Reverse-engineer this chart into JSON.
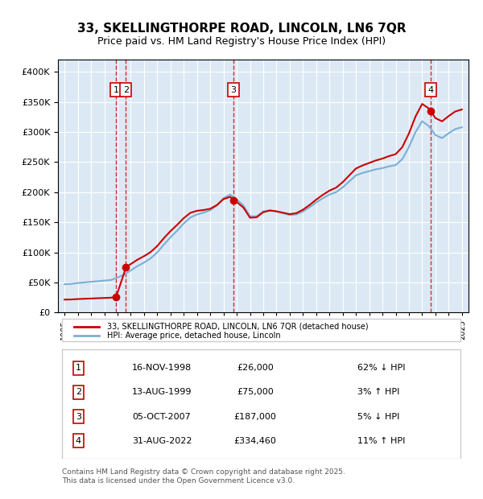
{
  "title": "33, SKELLINGTHORPE ROAD, LINCOLN, LN6 7QR",
  "subtitle": "Price paid vs. HM Land Registry's House Price Index (HPI)",
  "bg_color": "#dce9f5",
  "plot_bg_color": "#dce9f5",
  "hpi_years": [
    1995,
    1995.5,
    1996,
    1996.5,
    1997,
    1997.5,
    1998,
    1998.5,
    1999,
    1999.5,
    2000,
    2000.5,
    2001,
    2001.5,
    2002,
    2002.5,
    2003,
    2003.5,
    2004,
    2004.5,
    2005,
    2005.5,
    2006,
    2006.5,
    2007,
    2007.5,
    2008,
    2008.5,
    2009,
    2009.5,
    2010,
    2010.5,
    2011,
    2011.5,
    2012,
    2012.5,
    2013,
    2013.5,
    2014,
    2014.5,
    2015,
    2015.5,
    2016,
    2016.5,
    2017,
    2017.5,
    2018,
    2018.5,
    2019,
    2019.5,
    2020,
    2020.5,
    2021,
    2021.5,
    2022,
    2022.5,
    2023,
    2023.5,
    2024,
    2024.5,
    2025
  ],
  "hpi_values": [
    47000,
    47500,
    49000,
    50000,
    51000,
    52000,
    53000,
    54000,
    58000,
    63000,
    70000,
    77000,
    83000,
    90000,
    100000,
    113000,
    125000,
    136000,
    148000,
    158000,
    163000,
    166000,
    170000,
    178000,
    190000,
    196000,
    188000,
    178000,
    160000,
    160000,
    168000,
    170000,
    168000,
    165000,
    162000,
    163000,
    168000,
    175000,
    183000,
    190000,
    196000,
    200000,
    208000,
    218000,
    228000,
    232000,
    235000,
    238000,
    240000,
    243000,
    245000,
    255000,
    275000,
    300000,
    318000,
    310000,
    295000,
    290000,
    298000,
    305000,
    308000
  ],
  "sale_years": [
    1998.88,
    1999.62,
    2007.76,
    2022.66
  ],
  "sale_prices": [
    26000,
    75000,
    187000,
    334460
  ],
  "sale_color": "#cc0000",
  "hpi_color": "#7ab0d4",
  "hpi_line_color": "#5590b8",
  "annotations": [
    {
      "num": 1,
      "x": 1998.88,
      "label": "16-NOV-1998",
      "price": "£26,000",
      "pct": "62% ↓ HPI"
    },
    {
      "num": 2,
      "x": 1999.62,
      "label": "13-AUG-1999",
      "price": "£75,000",
      "pct": "3% ↑ HPI"
    },
    {
      "num": 3,
      "x": 2007.76,
      "label": "05-OCT-2007",
      "price": "£187,000",
      "pct": "5% ↓ HPI"
    },
    {
      "num": 4,
      "x": 2022.66,
      "label": "31-AUG-2022",
      "price": "£334,460",
      "pct": "11% ↑ HPI"
    }
  ],
  "ylim": [
    0,
    420000
  ],
  "xlim": [
    1994.5,
    2025.5
  ],
  "yticks": [
    0,
    50000,
    100000,
    150000,
    200000,
    250000,
    300000,
    350000,
    400000
  ],
  "xtick_years": [
    1995,
    1996,
    1997,
    1998,
    1999,
    2000,
    2001,
    2002,
    2003,
    2004,
    2005,
    2006,
    2007,
    2008,
    2009,
    2010,
    2011,
    2012,
    2013,
    2014,
    2015,
    2016,
    2017,
    2018,
    2019,
    2020,
    2021,
    2022,
    2023,
    2024,
    2025
  ],
  "legend_sale_label": "33, SKELLINGTHORPE ROAD, LINCOLN, LN6 7QR (detached house)",
  "legend_hpi_label": "HPI: Average price, detached house, Lincoln",
  "footer": "Contains HM Land Registry data © Crown copyright and database right 2025.\nThis data is licensed under the Open Government Licence v3.0.",
  "table_rows": [
    [
      "1",
      "16-NOV-1998",
      "£26,000",
      "62% ↓ HPI"
    ],
    [
      "2",
      "13-AUG-1999",
      "£75,000",
      "3% ↑ HPI"
    ],
    [
      "3",
      "05-OCT-2007",
      "£187,000",
      "5% ↓ HPI"
    ],
    [
      "4",
      "31-AUG-2022",
      "£334,460",
      "11% ↑ HPI"
    ]
  ]
}
